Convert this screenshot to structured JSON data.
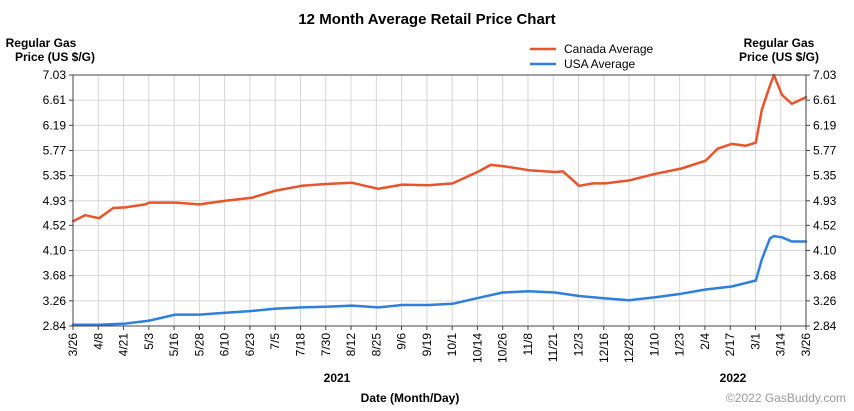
{
  "chart_data": {
    "type": "line",
    "title": "12 Month Average Retail Price Chart",
    "ylabel_left": [
      "Regular Gas",
      "Price (US $/G)"
    ],
    "ylabel_right": [
      "Regular Gas",
      "Price (US $/G)"
    ],
    "xlabel": "Date (Month/Day)",
    "year_labels": [
      "2021",
      "2022"
    ],
    "credit": "©2022 GasBuddy.com",
    "ylim": [
      2.84,
      7.03
    ],
    "y_ticks": [
      "2.84",
      "3.26",
      "3.68",
      "4.10",
      "4.52",
      "4.93",
      "5.35",
      "5.77",
      "6.19",
      "6.61",
      "7.03"
    ],
    "x_ticks": [
      "3/26",
      "4/8",
      "4/21",
      "5/3",
      "5/16",
      "5/28",
      "6/10",
      "6/23",
      "7/5",
      "7/18",
      "7/30",
      "8/12",
      "8/25",
      "9/6",
      "9/19",
      "10/1",
      "10/14",
      "10/26",
      "11/8",
      "11/21",
      "12/3",
      "12/16",
      "12/28",
      "1/10",
      "1/23",
      "2/4",
      "2/17",
      "3/1",
      "3/14",
      "3/26"
    ],
    "grid": true,
    "legend_position": "top-right",
    "series": [
      {
        "name": "Canada Average",
        "color": "#e8542c",
        "x": [
          "2021-03-26",
          "2021-04-01",
          "2021-04-08",
          "2021-04-15",
          "2021-04-21",
          "2021-05-01",
          "2021-05-03",
          "2021-05-16",
          "2021-05-28",
          "2021-06-10",
          "2021-06-23",
          "2021-07-05",
          "2021-07-18",
          "2021-07-30",
          "2021-08-12",
          "2021-08-25",
          "2021-09-06",
          "2021-09-19",
          "2021-10-01",
          "2021-10-14",
          "2021-10-20",
          "2021-10-26",
          "2021-11-08",
          "2021-11-21",
          "2021-11-25",
          "2021-12-03",
          "2021-12-10",
          "2021-12-16",
          "2021-12-28",
          "2022-01-10",
          "2022-01-23",
          "2022-02-04",
          "2022-02-10",
          "2022-02-17",
          "2022-02-24",
          "2022-03-01",
          "2022-03-04",
          "2022-03-08",
          "2022-03-10",
          "2022-03-14",
          "2022-03-19",
          "2022-03-26"
        ],
        "values": [
          4.59,
          4.69,
          4.64,
          4.81,
          4.82,
          4.87,
          4.9,
          4.9,
          4.87,
          4.93,
          4.98,
          5.1,
          5.18,
          5.21,
          5.23,
          5.13,
          5.2,
          5.19,
          5.22,
          5.42,
          5.53,
          5.51,
          5.44,
          5.41,
          5.42,
          5.18,
          5.22,
          5.22,
          5.27,
          5.38,
          5.47,
          5.6,
          5.8,
          5.88,
          5.85,
          5.9,
          6.45,
          6.85,
          7.03,
          6.7,
          6.55,
          6.66
        ]
      },
      {
        "name": "USA Average",
        "color": "#2f7fdc",
        "x": [
          "2021-03-26",
          "2021-04-08",
          "2021-04-21",
          "2021-05-03",
          "2021-05-16",
          "2021-05-28",
          "2021-06-10",
          "2021-06-23",
          "2021-07-05",
          "2021-07-18",
          "2021-07-30",
          "2021-08-12",
          "2021-08-25",
          "2021-09-06",
          "2021-09-19",
          "2021-10-01",
          "2021-10-14",
          "2021-10-26",
          "2021-11-08",
          "2021-11-21",
          "2021-12-03",
          "2021-12-16",
          "2021-12-28",
          "2022-01-10",
          "2022-01-23",
          "2022-02-04",
          "2022-02-17",
          "2022-03-01",
          "2022-03-04",
          "2022-03-08",
          "2022-03-10",
          "2022-03-14",
          "2022-03-19",
          "2022-03-26"
        ],
        "values": [
          2.86,
          2.86,
          2.88,
          2.93,
          3.03,
          3.03,
          3.06,
          3.09,
          3.13,
          3.15,
          3.16,
          3.18,
          3.15,
          3.19,
          3.19,
          3.21,
          3.31,
          3.4,
          3.42,
          3.4,
          3.34,
          3.3,
          3.27,
          3.32,
          3.38,
          3.45,
          3.5,
          3.6,
          3.95,
          4.3,
          4.34,
          4.32,
          4.25,
          4.25
        ]
      }
    ]
  }
}
